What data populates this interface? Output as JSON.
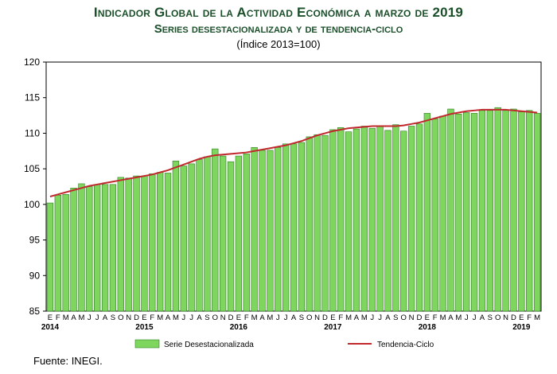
{
  "header": {
    "title": "Indicador Global de la Actividad Económica a marzo de 2019",
    "subtitle": "Series desestacionalizada y de tendencia-ciclo",
    "unit": "(Índice 2013=100)"
  },
  "source": "Fuente: INEGI.",
  "colors": {
    "bar": "#7fd65f",
    "bar_edge": "#2e7d1e",
    "trend": "#c0282d",
    "title": "#1b4f2a"
  },
  "chart_data": {
    "type": "bar",
    "ylim": [
      85,
      120
    ],
    "yticks": [
      "85",
      "90",
      "95",
      "100",
      "105",
      "110",
      "115",
      "120"
    ],
    "grid": false,
    "legend": "bottom",
    "month_labels": [
      "E",
      "F",
      "M",
      "A",
      "M",
      "J",
      "J",
      "A",
      "S",
      "O",
      "N",
      "D",
      "E",
      "F",
      "M",
      "A",
      "M",
      "J",
      "J",
      "A",
      "S",
      "O",
      "N",
      "D",
      "E",
      "F",
      "M",
      "A",
      "M",
      "J",
      "J",
      "A",
      "S",
      "O",
      "N",
      "D",
      "E",
      "F",
      "M",
      "A",
      "M",
      "J",
      "J",
      "A",
      "S",
      "O",
      "N",
      "D",
      "E",
      "F",
      "M",
      "A",
      "M",
      "J",
      "J",
      "A",
      "S",
      "O",
      "N",
      "D",
      "E",
      "F",
      "M"
    ],
    "year_labels": [
      {
        "label": "2014",
        "index": 0
      },
      {
        "label": "2015",
        "index": 12
      },
      {
        "label": "2016",
        "index": 24
      },
      {
        "label": "2017",
        "index": 36
      },
      {
        "label": "2018",
        "index": 48
      },
      {
        "label": "2019",
        "index": 60
      }
    ],
    "series": [
      {
        "name": "Serie Desestacionalizada",
        "type": "bar",
        "values": [
          100.2,
          101.3,
          101.4,
          102.3,
          102.9,
          102.5,
          102.8,
          102.8,
          102.8,
          103.8,
          103.7,
          104.0,
          104.0,
          104.3,
          104.5,
          104.4,
          106.1,
          105.4,
          105.7,
          106.3,
          106.7,
          107.8,
          106.8,
          106.0,
          106.8,
          107.1,
          108.0,
          107.6,
          107.6,
          108.0,
          108.5,
          108.5,
          108.7,
          109.5,
          109.8,
          109.7,
          110.5,
          110.8,
          110.2,
          110.6,
          111.0,
          110.7,
          111.0,
          110.4,
          111.2,
          110.3,
          111.0,
          111.3,
          112.8,
          112.0,
          112.4,
          113.4,
          112.7,
          112.9,
          112.8,
          113.2,
          113.2,
          113.6,
          113.2,
          113.4,
          113.0,
          113.2,
          112.8
        ]
      },
      {
        "name": "Tendencia-Ciclo",
        "type": "line",
        "values": [
          101.1,
          101.4,
          101.7,
          102.0,
          102.3,
          102.6,
          102.8,
          103.0,
          103.2,
          103.4,
          103.6,
          103.8,
          104.0,
          104.2,
          104.5,
          104.8,
          105.2,
          105.6,
          106.0,
          106.4,
          106.7,
          106.9,
          107.0,
          107.1,
          107.2,
          107.3,
          107.5,
          107.7,
          107.9,
          108.1,
          108.3,
          108.6,
          108.9,
          109.3,
          109.7,
          110.0,
          110.3,
          110.5,
          110.7,
          110.8,
          110.9,
          111.0,
          111.0,
          111.0,
          111.0,
          111.1,
          111.3,
          111.5,
          111.8,
          112.1,
          112.4,
          112.7,
          112.9,
          113.1,
          113.2,
          113.3,
          113.3,
          113.3,
          113.3,
          113.2,
          113.1,
          113.0,
          112.9
        ]
      }
    ]
  }
}
